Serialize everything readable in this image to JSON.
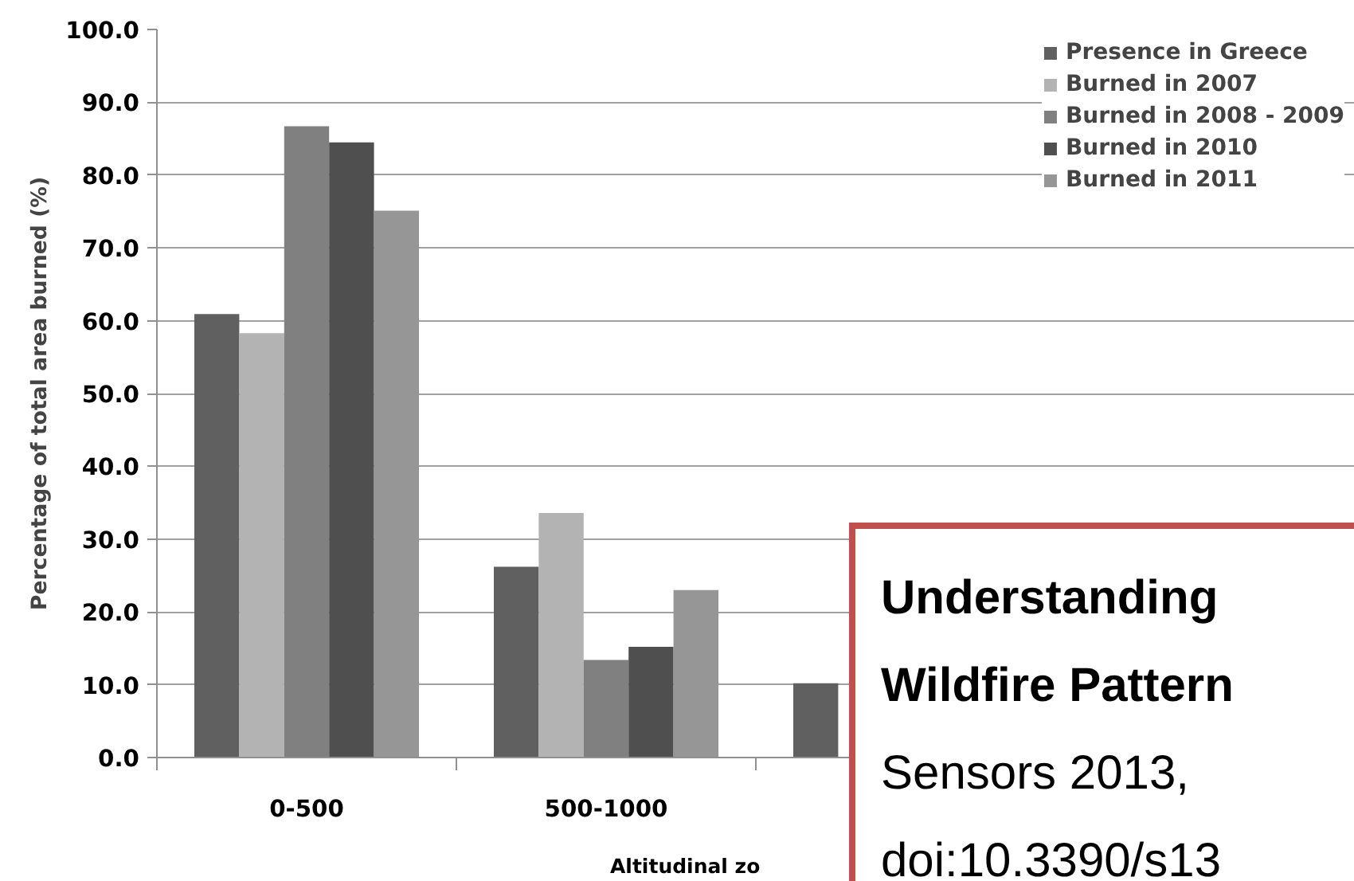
{
  "chart_data": {
    "type": "bar",
    "xlabel": "Altitudinal zo",
    "ylabel": "Percentage of total area burned (%)",
    "categories": [
      "0-500",
      "500-1000",
      null,
      null
    ],
    "series": [
      {
        "name": "Presence in Greece",
        "color": "#606060",
        "values": [
          60.9,
          26.2,
          10.2,
          null
        ]
      },
      {
        "name": "Burned in 2007",
        "color": "#b3b3b3",
        "values": [
          58.3,
          33.6,
          null,
          null
        ]
      },
      {
        "name": "Burned in 2008 - 2009",
        "color": "#808080",
        "values": [
          86.7,
          13.4,
          null,
          null
        ]
      },
      {
        "name": "Burned in 2010",
        "color": "#4f4f4f",
        "values": [
          84.5,
          15.2,
          null,
          null
        ]
      },
      {
        "name": "Burned in 2011",
        "color": "#969696",
        "values": [
          75.1,
          23.0,
          null,
          null
        ]
      }
    ],
    "ylim": [
      0,
      100
    ],
    "yticks": [
      {
        "value": 0,
        "label": "0.0"
      },
      {
        "value": 10,
        "label": "10.0"
      },
      {
        "value": 20,
        "label": "20.0"
      },
      {
        "value": 30,
        "label": "30.0"
      },
      {
        "value": 40,
        "label": "40.0"
      },
      {
        "value": 50,
        "label": "50.0"
      },
      {
        "value": 60,
        "label": "60.0"
      },
      {
        "value": 70,
        "label": "70.0"
      },
      {
        "value": 80,
        "label": "80.0"
      },
      {
        "value": 90,
        "label": "90.0"
      },
      {
        "value": 100,
        "label": "100.0"
      }
    ],
    "grid": "y",
    "legend": "top right",
    "annotations": [
      "Understanding",
      "Wildfire Pattern",
      "Sensors  2013,",
      "doi:10.3390/s13"
    ]
  }
}
